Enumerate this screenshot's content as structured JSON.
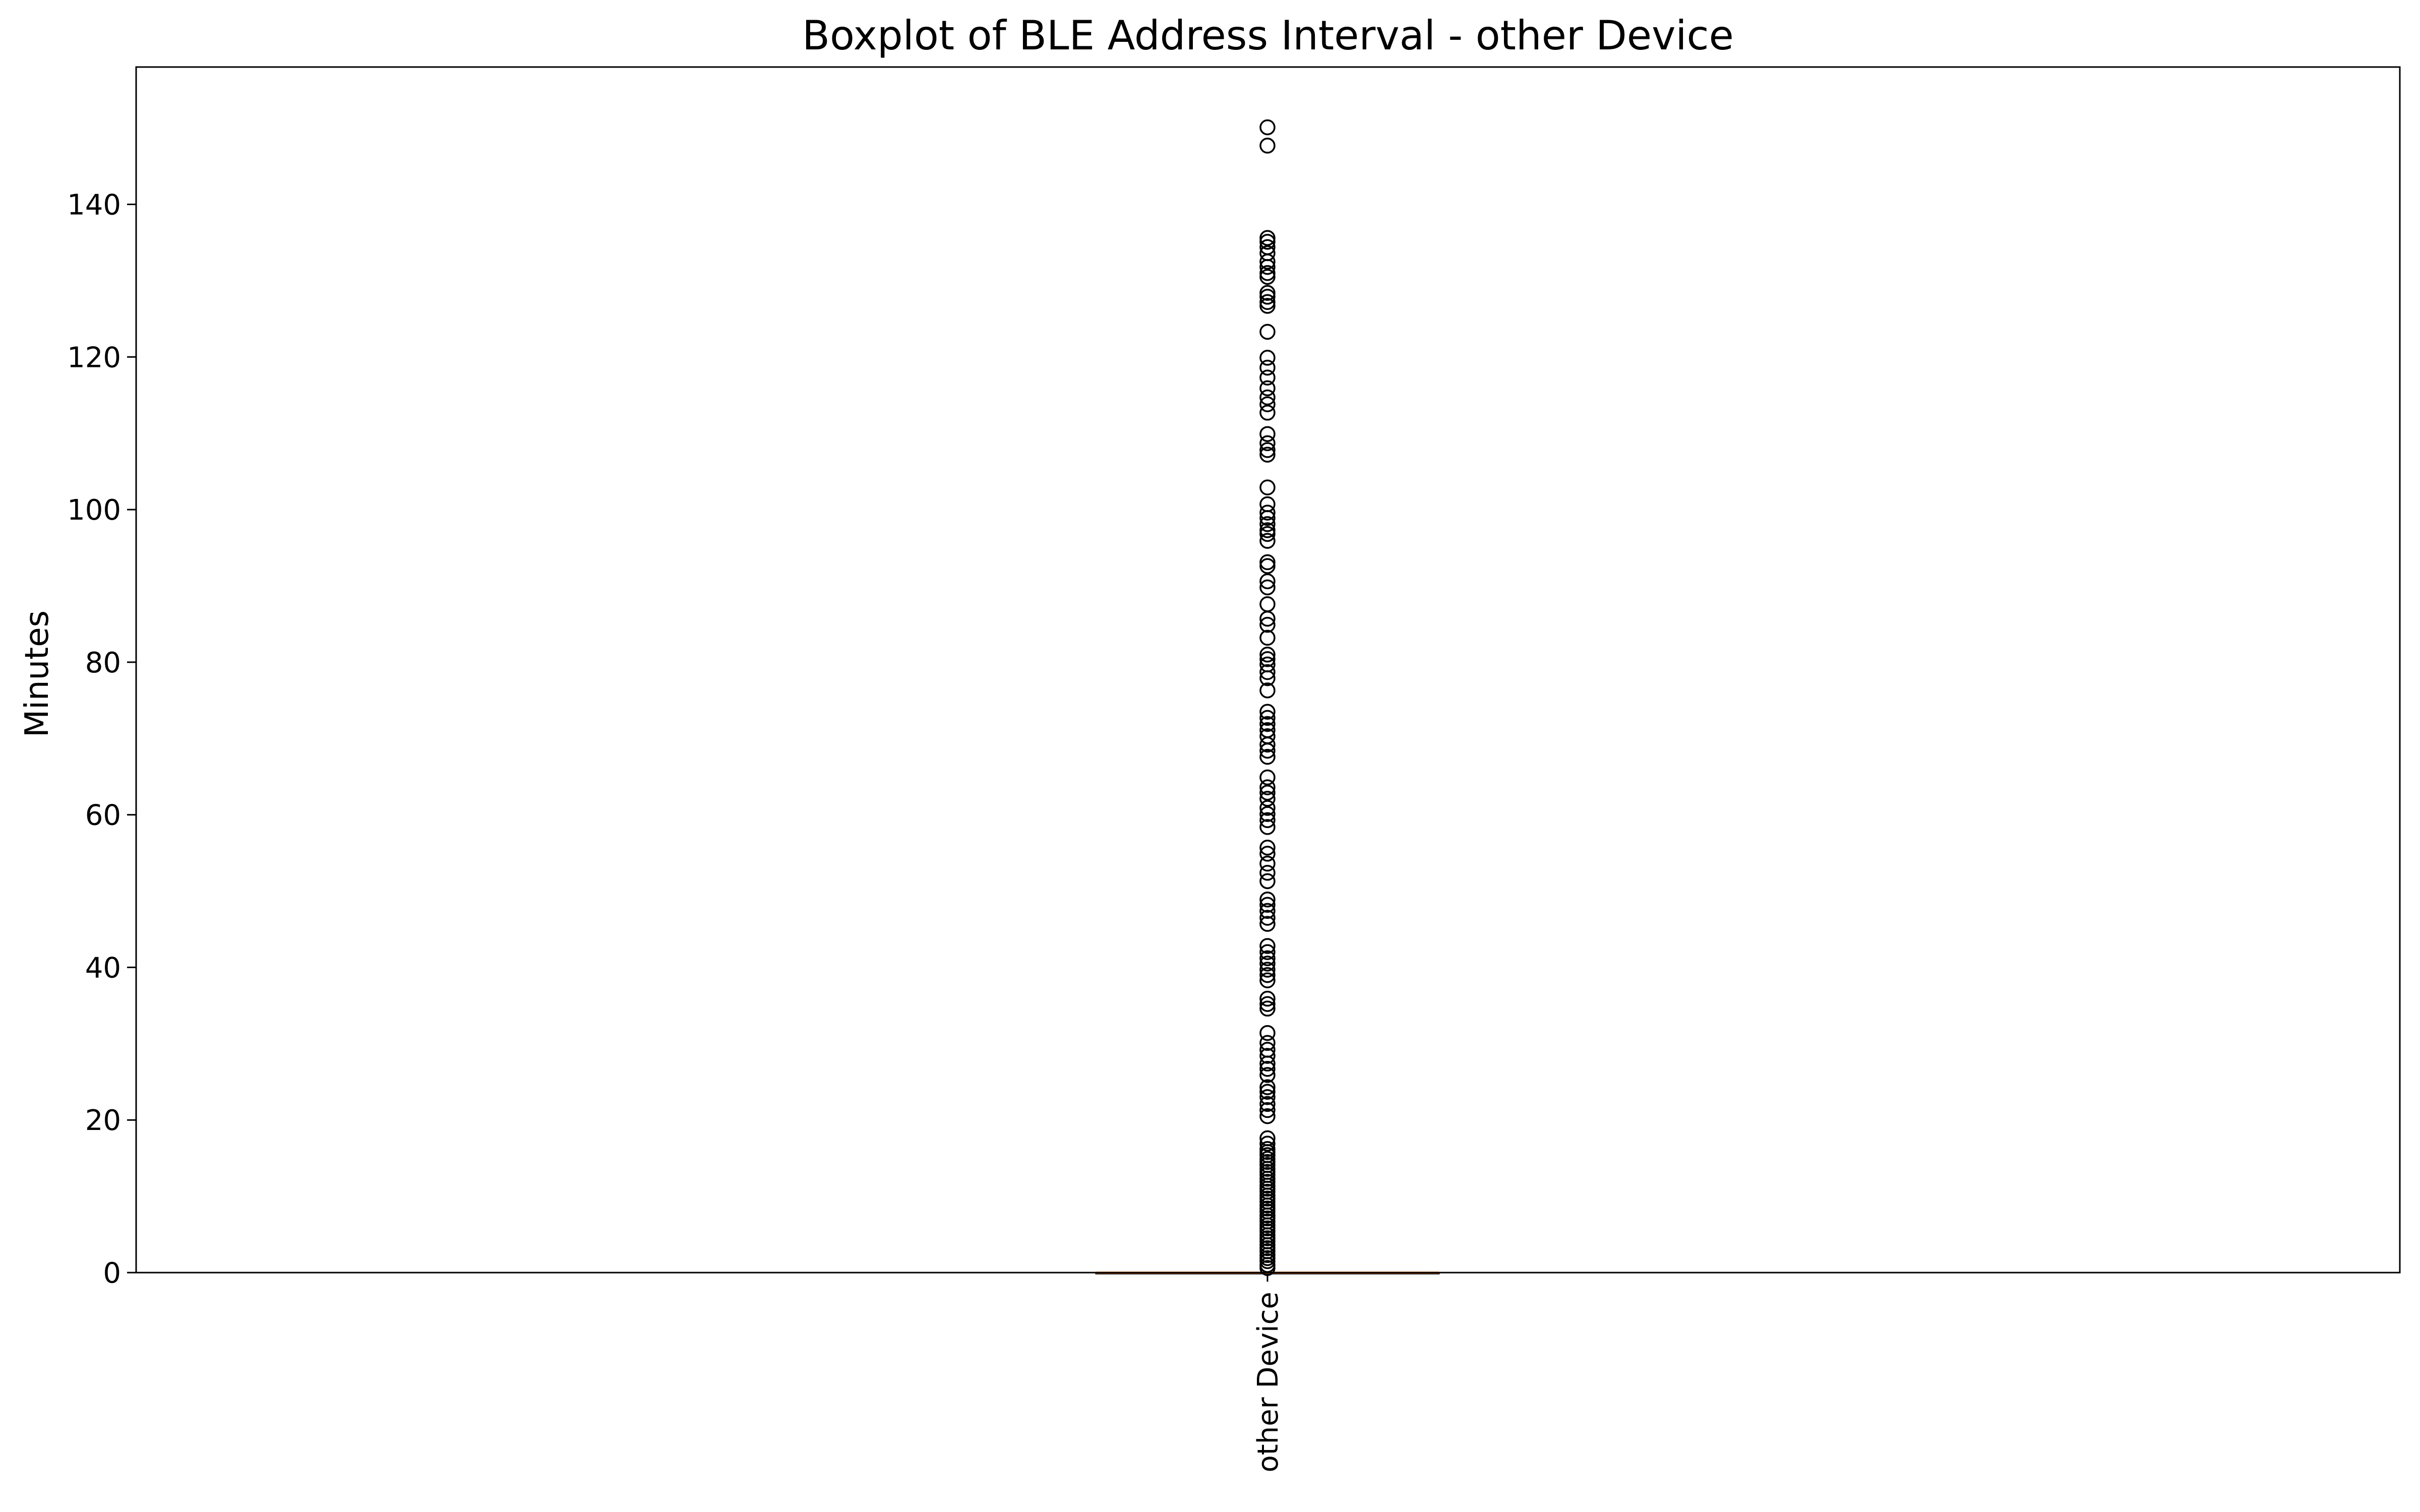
{
  "chart_data": {
    "type": "boxplot",
    "title": "Boxplot of BLE Address Interval - other Device",
    "xlabel": "",
    "ylabel": "Minutes",
    "ylim": [
      0,
      158
    ],
    "yticks": [
      0,
      20,
      40,
      60,
      80,
      100,
      120,
      140
    ],
    "categories": [
      "other Device"
    ],
    "grid": false,
    "box": {
      "min": 0,
      "q1": 0,
      "median": 0,
      "q3": 0,
      "max": 0
    },
    "outliers": [
      150.1,
      147.7,
      135.6,
      135.1,
      134.4,
      133.6,
      132.5,
      131.8,
      131.0,
      130.5,
      128.4,
      127.9,
      127.2,
      126.7,
      123.3,
      119.9,
      118.6,
      117.3,
      115.9,
      114.7,
      113.8,
      112.7,
      109.9,
      108.7,
      107.8,
      107.2,
      102.9,
      100.7,
      99.6,
      98.9,
      98.1,
      97.3,
      96.8,
      95.9,
      93.1,
      92.6,
      90.6,
      89.8,
      87.6,
      85.7,
      84.9,
      83.2,
      81.0,
      80.4,
      79.7,
      78.7,
      77.9,
      76.3,
      73.5,
      72.7,
      71.9,
      71.1,
      70.3,
      69.2,
      68.4,
      67.6,
      64.9,
      63.6,
      62.9,
      62.1,
      60.9,
      60.1,
      59.3,
      58.4,
      55.7,
      54.9,
      53.6,
      52.4,
      51.3,
      48.9,
      48.2,
      47.4,
      46.5,
      45.7,
      42.8,
      42.0,
      41.2,
      40.5,
      39.7,
      39.0,
      38.3,
      35.9,
      35.2,
      34.6,
      31.4,
      30.1,
      29.2,
      28.4,
      27.4,
      26.7,
      25.9,
      24.3,
      23.7,
      23.0,
      22.1,
      21.3,
      20.5,
      17.6,
      16.9,
      16.2,
      15.8,
      15.4,
      14.9,
      14.5,
      14.1,
      13.6,
      13.2,
      12.8,
      12.3,
      11.9,
      11.4,
      11.0,
      10.6,
      10.1,
      9.7,
      9.3,
      8.8,
      8.4,
      8.0,
      7.5,
      7.1,
      6.7,
      6.2,
      5.8,
      5.4,
      4.9,
      4.5,
      4.1,
      3.6,
      3.2,
      2.8,
      2.3,
      1.9,
      1.5,
      1.0,
      0.6
    ],
    "colors": {
      "median": "#ff7f0e",
      "box": "#000000",
      "outlier": "#000000",
      "axes": "#000000"
    }
  }
}
